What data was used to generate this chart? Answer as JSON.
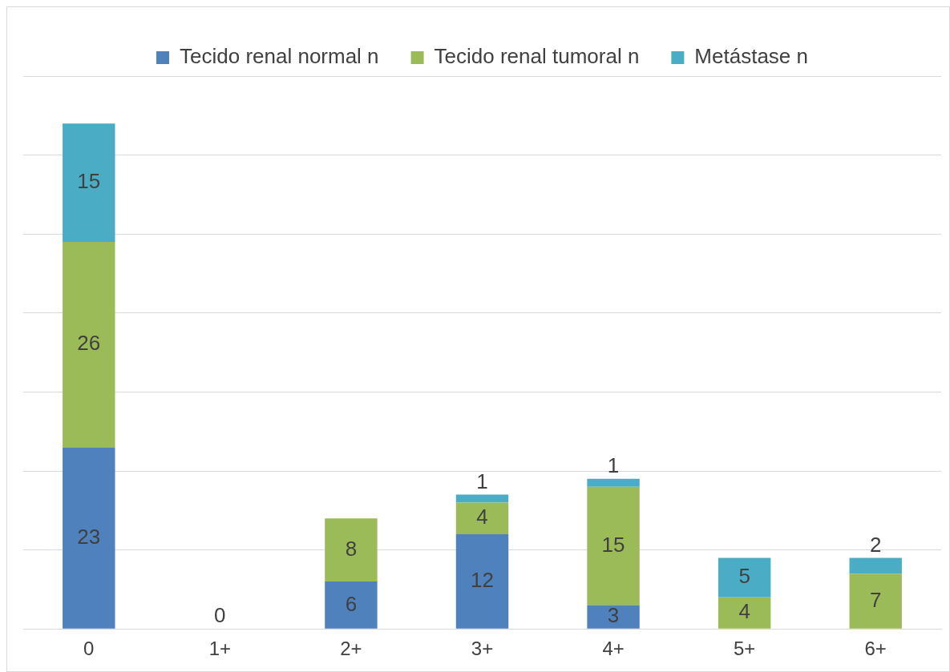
{
  "chart_data": {
    "type": "bar",
    "stacked": true,
    "categories": [
      "0",
      "1+",
      "2+",
      "3+",
      "4+",
      "5+",
      "6+"
    ],
    "series": [
      {
        "name": "Tecido renal normal n",
        "color": "#4f81bd",
        "values": [
          23,
          0,
          6,
          12,
          3,
          0,
          0
        ],
        "value_labels": [
          "23",
          "0",
          "6",
          "12",
          "3",
          null,
          null
        ]
      },
      {
        "name": "Tecido renal tumoral n",
        "color": "#9bbb59",
        "values": [
          26,
          0,
          8,
          4,
          15,
          4,
          7
        ],
        "value_labels": [
          "26",
          null,
          "8",
          "4",
          "15",
          "4",
          "7"
        ]
      },
      {
        "name": "Metástase n",
        "color": "#4bacc6",
        "values": [
          15,
          0,
          0,
          1,
          1,
          5,
          2
        ],
        "value_labels": [
          "15",
          null,
          null,
          "1",
          "1",
          "5",
          "2"
        ]
      }
    ],
    "ylim": [
      0,
      70
    ],
    "yticks": [
      {
        "value": 0,
        "label": null
      },
      {
        "value": 10,
        "label": null
      },
      {
        "value": 20,
        "label": null
      },
      {
        "value": 30,
        "label": null
      },
      {
        "value": 40,
        "label": null
      },
      {
        "value": 50,
        "label": null
      },
      {
        "value": 60,
        "label": null
      },
      {
        "value": 70,
        "label": null
      }
    ],
    "tick_labels": "x",
    "grid": "y",
    "legend": "top"
  }
}
